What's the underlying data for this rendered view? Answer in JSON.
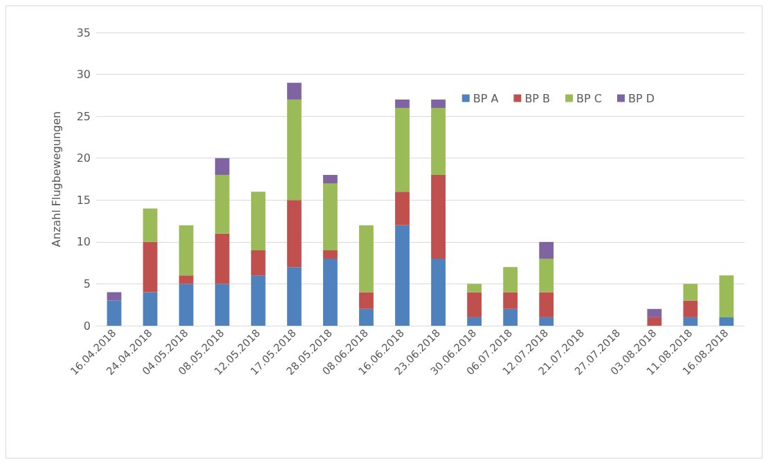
{
  "chart_data": {
    "type": "bar",
    "stacked": true,
    "ylabel": "Anzahl Flugbewegungen",
    "categories": [
      "16.04.2018",
      "24.04.2018",
      "04.05.2018",
      "08.05.2018",
      "12.05.2018",
      "17.05.2018",
      "28.05.2018",
      "08.06.2018",
      "16.06.2018",
      "23.06.2018",
      "30.06.2018",
      "06.07.2018",
      "12.07.2018",
      "21.07.2018",
      "27.07.2018",
      "03.08.2018",
      "11.08.2018",
      "16.08.2018"
    ],
    "series": [
      {
        "name": "BP A",
        "color": "#4f81bd",
        "values": [
          3,
          4,
          5,
          5,
          6,
          7,
          8,
          2,
          12,
          8,
          1,
          2,
          1,
          0,
          0,
          0,
          1,
          1
        ]
      },
      {
        "name": "BP B",
        "color": "#c0504d",
        "values": [
          0,
          6,
          1,
          6,
          3,
          8,
          1,
          2,
          4,
          10,
          3,
          2,
          3,
          0,
          0,
          1,
          2,
          0
        ]
      },
      {
        "name": "BP C",
        "color": "#9bbb59",
        "values": [
          0,
          4,
          6,
          7,
          7,
          12,
          8,
          8,
          10,
          8,
          1,
          3,
          4,
          0,
          0,
          0,
          2,
          5
        ]
      },
      {
        "name": "BP D",
        "color": "#8064a2",
        "values": [
          1,
          0,
          0,
          2,
          0,
          2,
          1,
          0,
          1,
          1,
          0,
          0,
          2,
          0,
          0,
          1,
          0,
          0
        ]
      }
    ],
    "ylim": [
      0,
      35
    ],
    "yticks": [
      0,
      5,
      10,
      15,
      20,
      25,
      30,
      35
    ],
    "grid": "y",
    "legend": "top right"
  }
}
